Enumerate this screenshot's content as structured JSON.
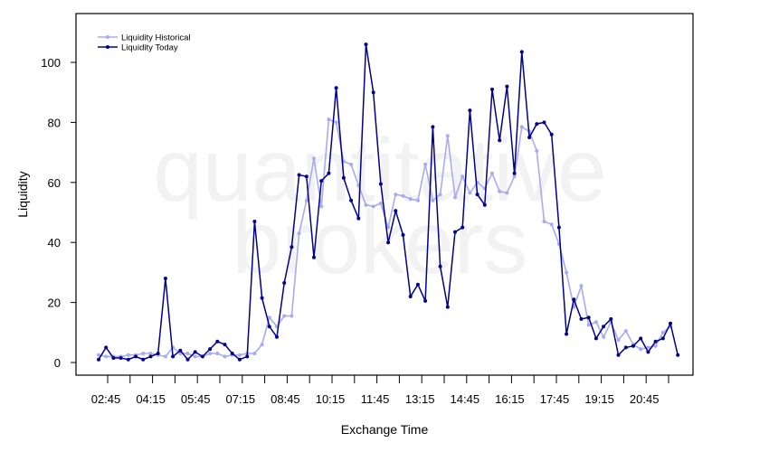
{
  "watermark": [
    "quantitative",
    "brokers"
  ],
  "chart_data": {
    "type": "line",
    "xlabel": "Exchange Time",
    "ylabel": "Liquidity",
    "ylim": [
      -4,
      116
    ],
    "yticks": [
      0,
      20,
      40,
      60,
      80,
      100
    ],
    "xticks": [
      "02:45",
      "04:15",
      "05:45",
      "07:15",
      "08:45",
      "10:15",
      "11:45",
      "13:15",
      "14:45",
      "16:15",
      "17:45",
      "19:15",
      "20:45"
    ],
    "legend_position": "top-left",
    "grid": false,
    "series": [
      {
        "name": "Liquidity Historical",
        "color": "#aaaaf0",
        "values": [
          2.5,
          2,
          2,
          2,
          2.5,
          2.5,
          3,
          3,
          2.5,
          2,
          5,
          3,
          3,
          2,
          2,
          3,
          3,
          2,
          2.5,
          2.5,
          3,
          3,
          6,
          15,
          12,
          15.5,
          15.5,
          43,
          54,
          68,
          52,
          81,
          80,
          67,
          66,
          59,
          52.5,
          52,
          53,
          45,
          56,
          55.5,
          54.5,
          54,
          66,
          54,
          56,
          75.5,
          55,
          62,
          56.5,
          60,
          58,
          63,
          57,
          56.5,
          62,
          78.5,
          77,
          70.5,
          47,
          46,
          39.5,
          30,
          18.5,
          25.5,
          12.5,
          13.5,
          8.5,
          13.5,
          7.5,
          10.5,
          6,
          4.5,
          5,
          5.5,
          10,
          12
        ]
      },
      {
        "name": "Liquidity Today",
        "color": "#00008b",
        "values": [
          1,
          5,
          1.5,
          1.5,
          1,
          2,
          1,
          2,
          3,
          28,
          2,
          4,
          1,
          3.5,
          2,
          4.5,
          7,
          6,
          3,
          1,
          2,
          47,
          21.5,
          12,
          8.5,
          26.5,
          38.5,
          62.5,
          62,
          35,
          60.5,
          63,
          91.5,
          61.5,
          54,
          48,
          106,
          90,
          59.5,
          40,
          50.5,
          42.5,
          22,
          26,
          20.5,
          78.5,
          32,
          18.5,
          43.5,
          45,
          84,
          56,
          52.5,
          91,
          74,
          92,
          63,
          103.5,
          75,
          79.5,
          80,
          76,
          45,
          9.5,
          21,
          14.5,
          15,
          8,
          12,
          14.5,
          2.5,
          5,
          5.5,
          8,
          3.5,
          7,
          8,
          13,
          2.5
        ]
      }
    ]
  }
}
